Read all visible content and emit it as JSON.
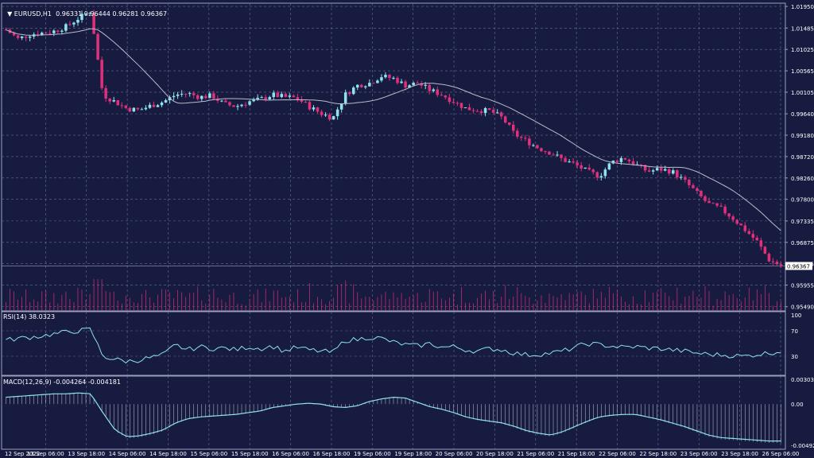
{
  "header": {
    "symbol_tf": "EURUSD,H1",
    "o": "0.96331",
    "h": "0.96444",
    "l": "0.96281",
    "c": "0.96367",
    "current_price": "0.96367"
  },
  "colors": {
    "background": "#161b3f",
    "grid": "#6a7090",
    "bull": "#8fe3ee",
    "bear": "#e0307c",
    "ma": "#b9bccc",
    "volume": "#e0307c",
    "indicator": "#8fe3ee",
    "text": "#ffffff"
  },
  "price_axis": {
    "ticks": [
      "1.01950",
      "1.01485",
      "1.01025",
      "1.00565",
      "1.00105",
      "0.99640",
      "0.99180",
      "0.98720",
      "0.98260",
      "0.97800",
      "0.97335",
      "0.96875",
      "0.96415",
      "0.95955",
      "0.95490"
    ]
  },
  "time_axis": {
    "labels": [
      "12 Sep 2022",
      "13 Sep 06:00",
      "13 Sep 18:00",
      "14 Sep 06:00",
      "14 Sep 18:00",
      "15 Sep 06:00",
      "15 Sep 18:00",
      "16 Sep 06:00",
      "16 Sep 18:00",
      "19 Sep 06:00",
      "19 Sep 18:00",
      "20 Sep 06:00",
      "20 Sep 18:00",
      "21 Sep 06:00",
      "21 Sep 18:00",
      "22 Sep 06:00",
      "22 Sep 18:00",
      "23 Sep 06:00",
      "23 Sep 18:00",
      "26 Sep 06:00"
    ]
  },
  "rsi": {
    "label": "RSI(14) 38.0323",
    "ticks": [
      "100",
      "70",
      "30",
      "0"
    ]
  },
  "macd": {
    "label": "MACD(12,26,9) -0.004264 -0.004181",
    "ticks": [
      "0.003038",
      "0.00",
      "-0.004929"
    ]
  },
  "chart_data": {
    "type": "candlestick",
    "symbol": "EURUSD",
    "timeframe": "H1",
    "series_anchor": [
      1.0145,
      1.0125,
      1.0135,
      1.0138,
      1.0142,
      1.0152,
      1.017,
      1.0185,
      1.0005,
      0.999,
      0.9975,
      0.9972,
      0.9982,
      0.999,
      1.0005,
      1.0008,
      1.0,
      1.0003,
      0.9985,
      0.998,
      0.999,
      0.9995,
      1.0005,
      1.0,
      0.9998,
      0.998,
      0.9965,
      0.9955,
      1.0005,
      1.0025,
      1.003,
      1.0045,
      1.004,
      1.0025,
      1.003,
      1.0015,
      1.0005,
      0.999,
      0.9975,
      0.9972,
      0.997,
      0.9955,
      0.992,
      0.9905,
      0.989,
      0.988,
      0.9865,
      0.9855,
      0.984,
      0.983,
      0.986,
      0.987,
      0.9855,
      0.984,
      0.9845,
      0.984,
      0.982,
      0.9795,
      0.977,
      0.976,
      0.974,
      0.9715,
      0.969,
      0.965,
      0.9637
    ],
    "price_range": [
      0.954,
      1.0202
    ],
    "rsi_anchor": [
      55,
      58,
      60,
      62,
      65,
      68,
      70,
      72,
      30,
      25,
      22,
      24,
      28,
      32,
      48,
      40,
      45,
      42,
      43,
      40,
      45,
      42,
      46,
      38,
      44,
      40,
      38,
      36,
      55,
      56,
      60,
      58,
      52,
      48,
      46,
      50,
      44,
      45,
      40,
      38,
      42,
      40,
      35,
      32,
      33,
      35,
      38,
      44,
      50,
      48,
      46,
      44,
      45,
      43,
      42,
      40,
      38,
      35,
      33,
      32,
      31,
      30,
      33,
      35,
      38
    ],
    "macd_anchor": [
      0.0008,
      0.0009,
      0.001,
      0.0011,
      0.0012,
      0.0012,
      0.0013,
      0.0012,
      -0.001,
      -0.003,
      -0.0038,
      -0.0037,
      -0.0034,
      -0.003,
      -0.0022,
      -0.0017,
      -0.0015,
      -0.0014,
      -0.0013,
      -0.0012,
      -0.001,
      -0.0008,
      -0.0004,
      -0.0002,
      0.0,
      0.0001,
      0.0,
      -0.0003,
      -0.0004,
      -0.0002,
      0.0003,
      0.0006,
      0.0008,
      0.0007,
      0.0002,
      -0.0003,
      -0.0006,
      -0.001,
      -0.0015,
      -0.0018,
      -0.002,
      -0.0022,
      -0.0026,
      -0.0031,
      -0.0034,
      -0.0036,
      -0.0032,
      -0.0026,
      -0.002,
      -0.0015,
      -0.0013,
      -0.0012,
      -0.0012,
      -0.0015,
      -0.0018,
      -0.0022,
      -0.0026,
      -0.0031,
      -0.0036,
      -0.0039,
      -0.004,
      -0.0041,
      -0.0042,
      -0.0043,
      -0.0043
    ],
    "macd_range": [
      -0.005,
      0.0031
    ]
  }
}
